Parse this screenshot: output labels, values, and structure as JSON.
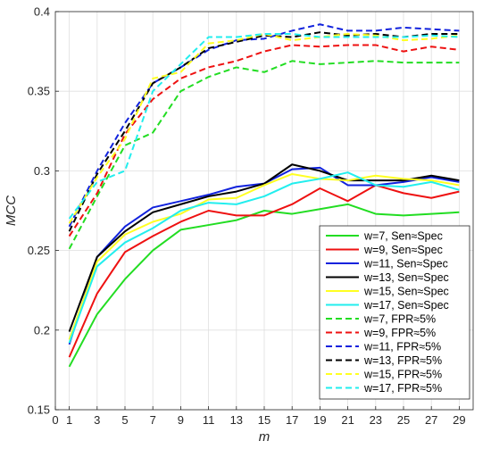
{
  "chart_data": {
    "type": "line",
    "xlabel": "m",
    "ylabel": "MCC",
    "xlim": [
      0,
      30
    ],
    "ylim": [
      0.15,
      0.4
    ],
    "xticks": [
      0,
      1,
      3,
      5,
      7,
      9,
      11,
      13,
      15,
      17,
      19,
      21,
      23,
      25,
      27,
      29
    ],
    "yticks": [
      0.15,
      0.2,
      0.25,
      0.3,
      0.35,
      0.4
    ],
    "grid": true,
    "legend_position": "bottom-right",
    "x": [
      1,
      3,
      5,
      7,
      9,
      11,
      13,
      15,
      17,
      19,
      21,
      23,
      25,
      27,
      29
    ],
    "series": [
      {
        "name": "w=7, Sen≈Spec",
        "color": "#22dd22",
        "dash": "solid",
        "values": [
          0.177,
          0.21,
          0.232,
          0.25,
          0.263,
          0.266,
          0.269,
          0.275,
          0.273,
          0.276,
          0.279,
          0.273,
          0.272,
          0.273,
          0.274
        ]
      },
      {
        "name": "w=9, Sen≈Spec",
        "color": "#ee1111",
        "dash": "solid",
        "values": [
          0.183,
          0.223,
          0.249,
          0.259,
          0.268,
          0.275,
          0.272,
          0.272,
          0.279,
          0.289,
          0.281,
          0.291,
          0.286,
          0.283,
          0.287
        ]
      },
      {
        "name": "w=11, Sen≈Spec",
        "color": "#1122dd",
        "dash": "solid",
        "values": [
          0.191,
          0.246,
          0.265,
          0.277,
          0.281,
          0.285,
          0.29,
          0.292,
          0.301,
          0.302,
          0.291,
          0.291,
          0.293,
          0.296,
          0.293
        ]
      },
      {
        "name": "w=13, Sen≈Spec",
        "color": "#000000",
        "dash": "solid",
        "values": [
          0.199,
          0.246,
          0.262,
          0.274,
          0.279,
          0.284,
          0.287,
          0.292,
          0.304,
          0.3,
          0.294,
          0.294,
          0.294,
          0.297,
          0.294
        ]
      },
      {
        "name": "w=15, Sen≈Spec",
        "color": "#ffff22",
        "dash": "solid",
        "values": [
          0.194,
          0.243,
          0.26,
          0.268,
          0.273,
          0.282,
          0.283,
          0.291,
          0.298,
          0.295,
          0.294,
          0.297,
          0.295,
          0.294,
          0.291
        ]
      },
      {
        "name": "w=17, Sen≈Spec",
        "color": "#22eeee",
        "dash": "solid",
        "values": [
          0.192,
          0.24,
          0.255,
          0.264,
          0.275,
          0.28,
          0.279,
          0.284,
          0.292,
          0.295,
          0.299,
          0.291,
          0.29,
          0.293,
          0.288
        ]
      },
      {
        "name": "w=7, FPR≈5%",
        "color": "#22dd22",
        "dash": "dashed",
        "values": [
          0.251,
          0.284,
          0.316,
          0.324,
          0.35,
          0.359,
          0.365,
          0.362,
          0.369,
          0.367,
          0.368,
          0.369,
          0.368,
          0.368,
          0.368
        ]
      },
      {
        "name": "w=9, FPR≈5%",
        "color": "#ee1111",
        "dash": "dashed",
        "values": [
          0.259,
          0.286,
          0.323,
          0.345,
          0.358,
          0.365,
          0.369,
          0.375,
          0.379,
          0.378,
          0.379,
          0.379,
          0.375,
          0.378,
          0.376
        ]
      },
      {
        "name": "w=11, FPR≈5%",
        "color": "#1122dd",
        "dash": "dashed",
        "values": [
          0.265,
          0.3,
          0.33,
          0.355,
          0.365,
          0.376,
          0.382,
          0.383,
          0.388,
          0.392,
          0.388,
          0.388,
          0.39,
          0.389,
          0.388
        ]
      },
      {
        "name": "w=13, FPR≈5%",
        "color": "#000000",
        "dash": "dashed",
        "values": [
          0.262,
          0.298,
          0.325,
          0.355,
          0.365,
          0.377,
          0.381,
          0.385,
          0.384,
          0.387,
          0.385,
          0.386,
          0.384,
          0.386,
          0.386
        ]
      },
      {
        "name": "w=15, FPR≈5%",
        "color": "#ffff22",
        "dash": "dashed",
        "values": [
          0.267,
          0.296,
          0.32,
          0.358,
          0.362,
          0.38,
          0.382,
          0.386,
          0.382,
          0.384,
          0.386,
          0.385,
          0.382,
          0.383,
          0.385
        ]
      },
      {
        "name": "w=17, FPR≈5%",
        "color": "#22eeee",
        "dash": "dashed",
        "values": [
          0.27,
          0.293,
          0.3,
          0.35,
          0.367,
          0.384,
          0.384,
          0.386,
          0.386,
          0.384,
          0.384,
          0.384,
          0.384,
          0.385,
          0.384
        ]
      }
    ]
  }
}
